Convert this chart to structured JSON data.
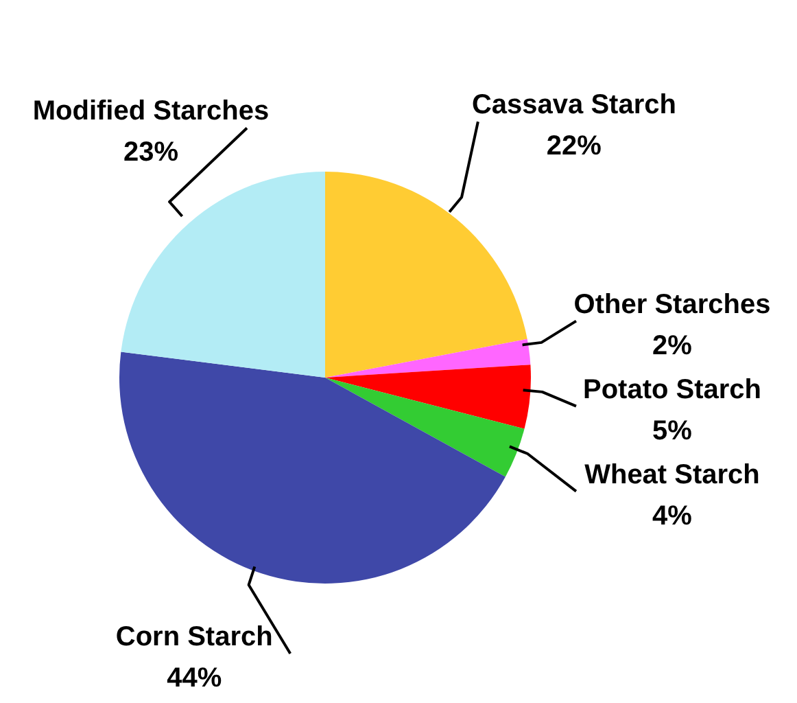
{
  "chart_data": {
    "type": "pie",
    "categories": [
      "Cassava Starch",
      "Other Starches",
      "Potato Starch",
      "Wheat Starch",
      "Corn Starch",
      "Modified Starches"
    ],
    "values": [
      22,
      2,
      5,
      4,
      44,
      23
    ],
    "value_labels": [
      "22%",
      "2%",
      "5%",
      "4%",
      "44%",
      "23%"
    ],
    "colors": [
      "#ffcc33",
      "#ff66ff",
      "#ff0000",
      "#33cc33",
      "#3f48a8",
      "#b3ecf5"
    ],
    "legend": false
  }
}
